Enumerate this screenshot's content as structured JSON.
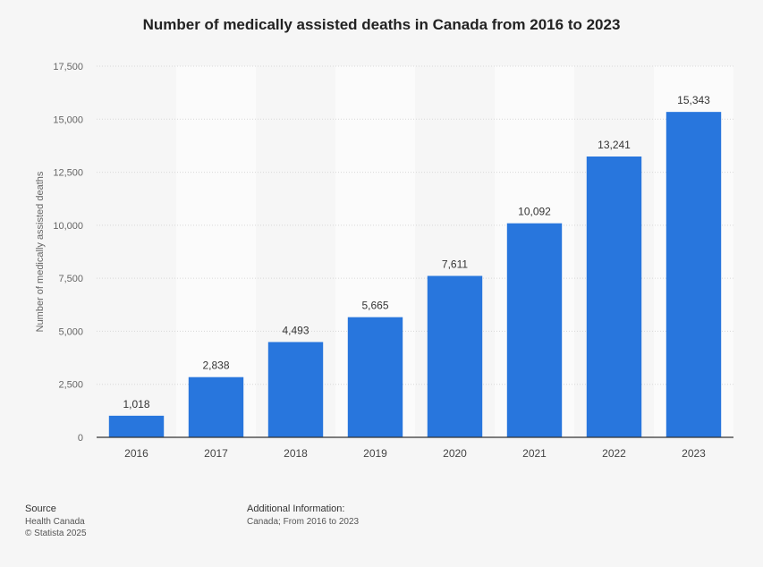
{
  "chart_data": {
    "type": "bar",
    "title": "Number of medically assisted deaths in Canada from 2016 to 2023",
    "xlabel": "",
    "ylabel": "Number of medically assisted deaths",
    "categories": [
      "2016",
      "2017",
      "2018",
      "2019",
      "2020",
      "2021",
      "2022",
      "2023"
    ],
    "values": [
      1018,
      2838,
      4493,
      5665,
      7611,
      10092,
      13241,
      15343
    ],
    "value_labels": [
      "1,018",
      "2,838",
      "4,493",
      "5,665",
      "7,611",
      "10,092",
      "13,241",
      "15,343"
    ],
    "ylim": [
      0,
      17500
    ],
    "yticks": [
      0,
      2500,
      5000,
      7500,
      10000,
      12500,
      15000,
      17500
    ],
    "ytick_labels": [
      "0",
      "2,500",
      "5,000",
      "7,500",
      "10,000",
      "12,500",
      "15,000",
      "17,500"
    ],
    "grid": true,
    "legend": "none",
    "bar_color": "#2876dd"
  },
  "footer": {
    "source_heading": "Source",
    "source_lines": [
      "Health Canada",
      "© Statista 2025"
    ],
    "info_heading": "Additional Information:",
    "info_text": "Canada; From 2016 to 2023"
  }
}
